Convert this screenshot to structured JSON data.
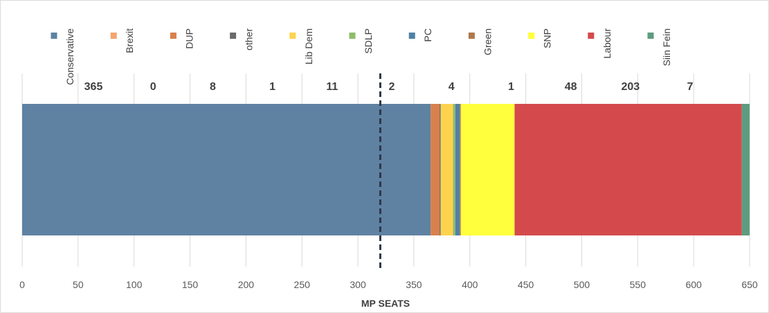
{
  "chart_data": {
    "type": "bar",
    "orientation": "horizontal-stacked",
    "xlabel": "MP SEATS",
    "xlim": [
      0,
      650
    ],
    "x_ticks": [
      0,
      50,
      100,
      150,
      200,
      250,
      300,
      350,
      400,
      450,
      500,
      550,
      600,
      650
    ],
    "grid": true,
    "legend_position": "top",
    "reference_line": {
      "value": 320,
      "style": "dashed"
    },
    "series": [
      {
        "name": "Conservative",
        "value": 365,
        "label": "365",
        "color": "#5f82a3"
      },
      {
        "name": "Brexit",
        "value": 0,
        "label": "0",
        "color": "#f4a46f"
      },
      {
        "name": "DUP",
        "value": 8,
        "label": "8",
        "color": "#d9804d"
      },
      {
        "name": "other",
        "value": 1,
        "label": "1",
        "color": "#6b6b6b"
      },
      {
        "name": "Lib Dem",
        "value": 11,
        "label": "11",
        "color": "#fdd34e"
      },
      {
        "name": "SDLP",
        "value": 2,
        "label": "2",
        "color": "#8ebd6a"
      },
      {
        "name": "PC",
        "value": 4,
        "label": "4",
        "color": "#4f81a6"
      },
      {
        "name": "Green",
        "value": 1,
        "label": "1",
        "color": "#b0784a"
      },
      {
        "name": "SNP",
        "value": 48,
        "label": "48",
        "color": "#ffff3d"
      },
      {
        "name": "Labour",
        "value": 203,
        "label": "203",
        "color": "#d44a4c"
      },
      {
        "name": "Siin Fein",
        "value": 7,
        "label": "7",
        "color": "#5e9c80"
      }
    ]
  }
}
